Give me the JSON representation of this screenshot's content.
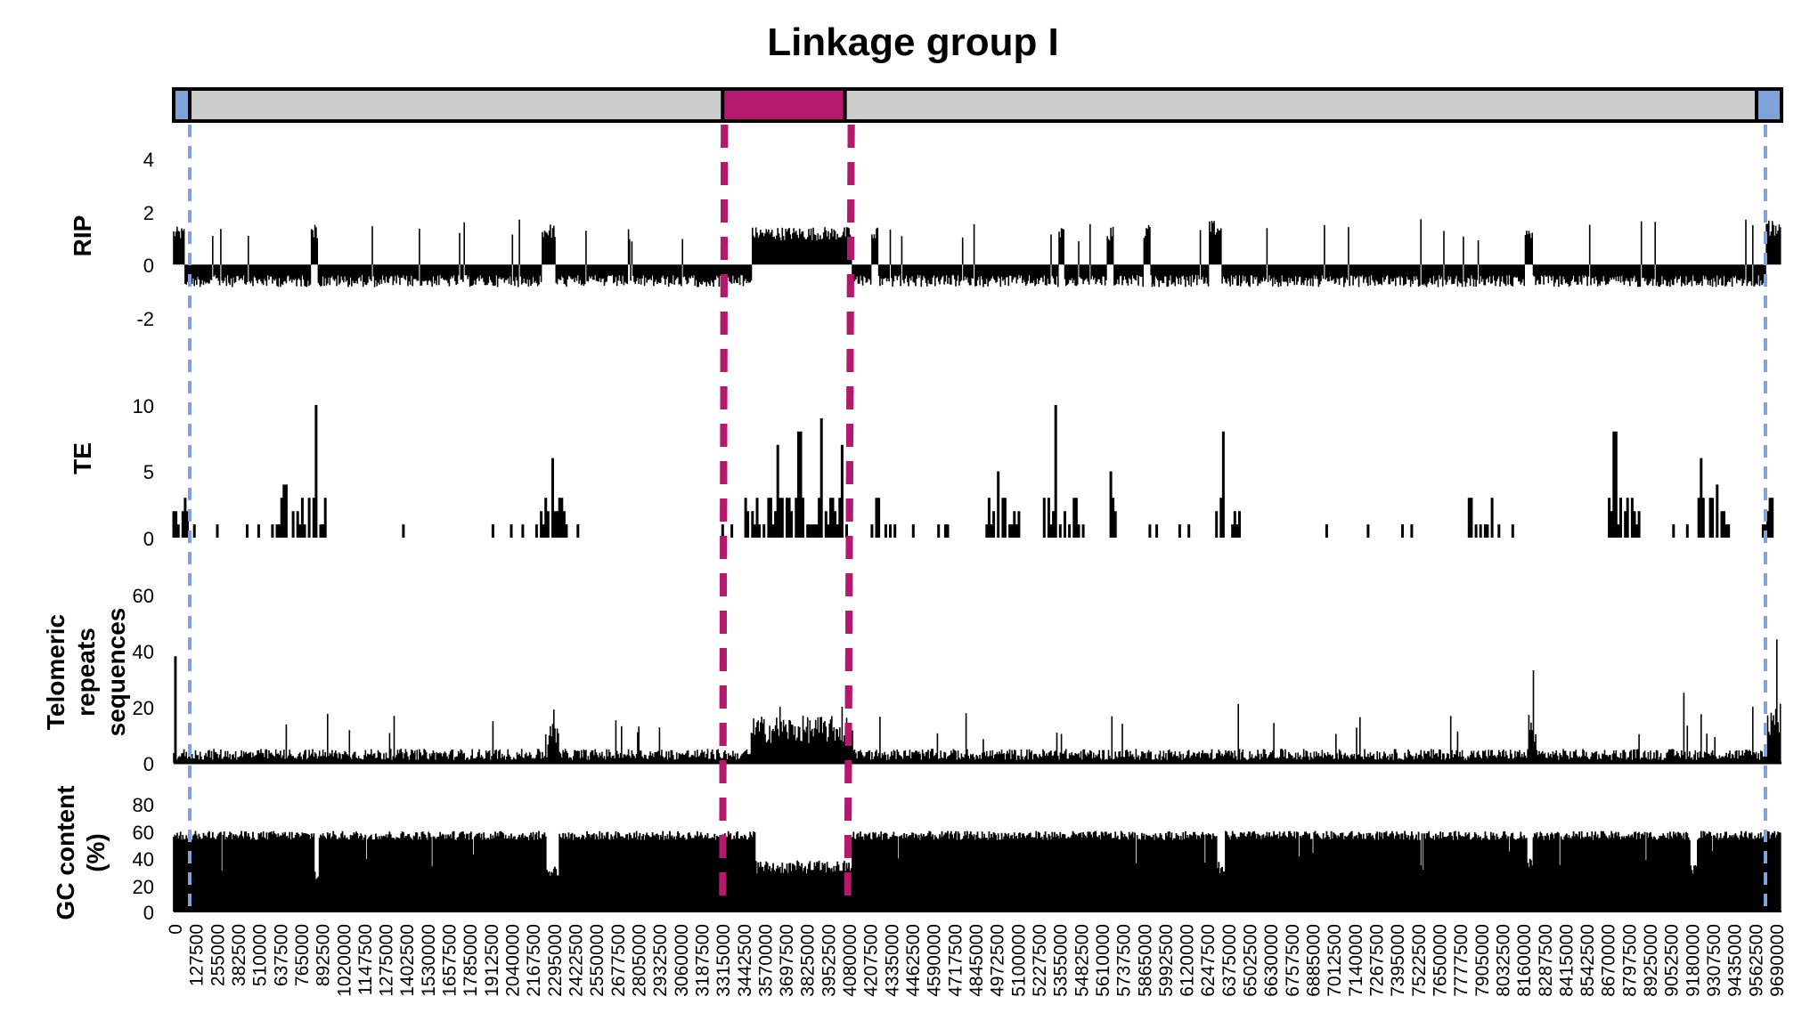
{
  "colors": {
    "bar_fill": "#cccccc",
    "centromere": "#b5196e",
    "telomere": "#7fa3d9",
    "data": "#000000"
  },
  "chart_data": {
    "type": "composite-genome-track",
    "title": "Linkage group I",
    "x_max": 9816000,
    "x_ticks": [
      "0",
      "127500",
      "255000",
      "382500",
      "510000",
      "637500",
      "765000",
      "892500",
      "1020000",
      "1147500",
      "1275000",
      "1402500",
      "1530000",
      "1657500",
      "1785000",
      "1912500",
      "2040000",
      "2167500",
      "2295000",
      "2422500",
      "2550000",
      "2677500",
      "2805000",
      "2932500",
      "3060000",
      "3187500",
      "3315000",
      "3442500",
      "3570000",
      "3697500",
      "3825000",
      "3952500",
      "4080000",
      "4207500",
      "4335000",
      "4462500",
      "4590000",
      "4717500",
      "4845000",
      "4972500",
      "5100000",
      "5227500",
      "5355000",
      "5482500",
      "5610000",
      "5737500",
      "5865000",
      "5992500",
      "6120000",
      "6247500",
      "6375000",
      "6502500",
      "6630000",
      "6757500",
      "6885000",
      "7012500",
      "7140000",
      "7267500",
      "7395000",
      "7522500",
      "7650000",
      "7777500",
      "7905000",
      "8032500",
      "8160000",
      "8287500",
      "8415000",
      "8542500",
      "8670000",
      "8797500",
      "8925000",
      "9052500",
      "9180000",
      "9307500",
      "9435000",
      "9562500",
      "9690000"
    ],
    "centromere_region": [
      3460000,
      4180000
    ],
    "telomere_regions": [
      [
        0,
        90000
      ],
      [
        9690000,
        9816000
      ]
    ],
    "panels": [
      {
        "name": "RIP",
        "ylabel": "RIP",
        "ylim": [
          -2,
          4
        ],
        "yticks": [
          "4",
          "2",
          "0",
          "-2"
        ],
        "baseline": 0,
        "normal_level": -0.6,
        "elevated_regions": [
          [
            0,
            70000,
            1.2
          ],
          [
            840000,
            880000,
            1.3
          ],
          [
            2250000,
            2330000,
            1.3
          ],
          [
            3530000,
            4140000,
            1.2
          ],
          [
            4260000,
            4300000,
            1.2
          ],
          [
            5400000,
            5440000,
            1.3
          ],
          [
            5700000,
            5740000,
            1.2
          ],
          [
            5920000,
            5960000,
            1.3
          ],
          [
            6320000,
            6400000,
            1.4
          ],
          [
            8250000,
            8300000,
            1.3
          ],
          [
            9720000,
            9816000,
            1.4
          ]
        ]
      },
      {
        "name": "TE",
        "ylabel": "TE",
        "ylim": [
          0,
          10
        ],
        "yticks": [
          "10",
          "5",
          "0"
        ],
        "peaks": [
          [
            870000,
            10
          ],
          [
            680000,
            4
          ],
          [
            2310000,
            6
          ],
          [
            3690000,
            7
          ],
          [
            3820000,
            8
          ],
          [
            3950000,
            9
          ],
          [
            4080000,
            7
          ],
          [
            5380000,
            10
          ],
          [
            5030000,
            5
          ],
          [
            5720000,
            5
          ],
          [
            6410000,
            8
          ],
          [
            8800000,
            8
          ],
          [
            9330000,
            6
          ],
          [
            9420000,
            4
          ]
        ],
        "active_regions": [
          [
            0,
            90000
          ],
          [
            620000,
            960000
          ],
          [
            2230000,
            2400000
          ],
          [
            3480000,
            4140000
          ],
          [
            4280000,
            4310000
          ],
          [
            4960000,
            5200000
          ],
          [
            5310000,
            5560000
          ],
          [
            5710000,
            5760000
          ],
          [
            6360000,
            6520000
          ],
          [
            7900000,
            8050000
          ],
          [
            8750000,
            8950000
          ],
          [
            9300000,
            9500000
          ],
          [
            9650000,
            9800000
          ]
        ]
      },
      {
        "name": "Telomeric repeats sequences",
        "ylabel": [
          "Telomeric",
          "repeats",
          "sequences"
        ],
        "ylim": [
          0,
          60
        ],
        "yticks": [
          "60",
          "40",
          "20",
          "0"
        ],
        "peaks": [
          [
            10000,
            38
          ],
          [
            9790000,
            44
          ],
          [
            8300000,
            33
          ],
          [
            9220000,
            25
          ],
          [
            3700000,
            20
          ],
          [
            4080000,
            20
          ],
          [
            6500000,
            21
          ],
          [
            2320000,
            19
          ],
          [
            9640000,
            20
          ]
        ],
        "elevated_regions": [
          [
            3520000,
            4150000,
            14
          ],
          [
            2280000,
            2350000,
            12
          ],
          [
            8270000,
            8320000,
            15
          ],
          [
            9730000,
            9816000,
            18
          ]
        ]
      },
      {
        "name": "GC content",
        "ylabel": [
          "GC content",
          "(%)"
        ],
        "ylim": [
          0,
          80
        ],
        "yticks": [
          "80",
          "60",
          "40",
          "20",
          "0"
        ],
        "normal_level": 57,
        "depressed_regions": [
          [
            860000,
            890000,
            28
          ],
          [
            2280000,
            2350000,
            30
          ],
          [
            3560000,
            4140000,
            33
          ],
          [
            6370000,
            6420000,
            33
          ],
          [
            8260000,
            8300000,
            35
          ],
          [
            9260000,
            9300000,
            30
          ]
        ]
      }
    ]
  }
}
